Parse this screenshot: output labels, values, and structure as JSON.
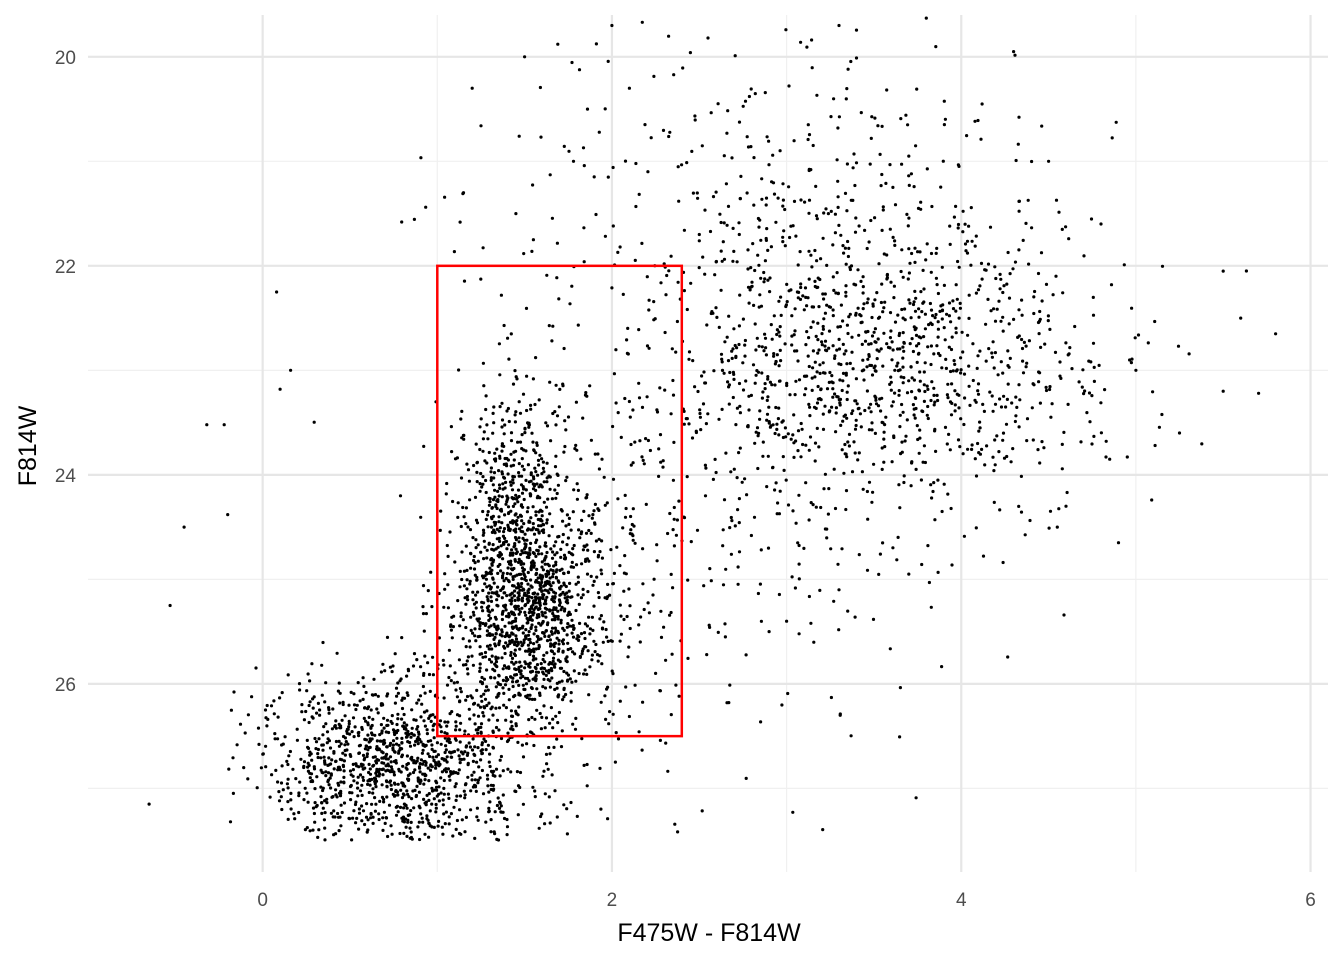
{
  "chart_data": {
    "type": "scatter",
    "title": "",
    "xlabel": "F475W - F814W",
    "ylabel": "F814W",
    "xlim": [
      -1.0,
      6.1
    ],
    "ylim": [
      19.6,
      27.8
    ],
    "y_reversed": true,
    "grid": true,
    "x_major_ticks": [
      0,
      2,
      4,
      6
    ],
    "x_tick_labels": [
      "0",
      "2",
      "4",
      "6"
    ],
    "x_minor_ticks": [
      1,
      3,
      5
    ],
    "y_major_ticks": [
      20,
      22,
      24,
      26
    ],
    "y_tick_labels": [
      "20",
      "22",
      "24",
      "26"
    ],
    "y_minor_ticks": [
      21,
      23,
      25,
      27
    ],
    "point_color": "#000000",
    "selection_box": {
      "x": [
        1.0,
        2.4
      ],
      "y": [
        22.0,
        26.5
      ],
      "color": "#ff0000"
    },
    "clusters": [
      {
        "cx": 0.75,
        "cy": 26.75,
        "sx": 0.38,
        "sy": 0.42,
        "n": 1150
      },
      {
        "cx": 1.5,
        "cy": 25.35,
        "sx": 0.22,
        "sy": 0.55,
        "n": 1100
      },
      {
        "cx": 1.42,
        "cy": 24.2,
        "sx": 0.14,
        "sy": 0.55,
        "n": 350
      },
      {
        "cx": 1.85,
        "cy": 24.5,
        "sx": 0.35,
        "sy": 1.1,
        "n": 250
      },
      {
        "cx": 3.4,
        "cy": 22.9,
        "sx": 0.55,
        "sy": 0.75,
        "n": 900
      },
      {
        "cx": 3.0,
        "cy": 21.1,
        "sx": 0.65,
        "sy": 0.75,
        "n": 220
      },
      {
        "cx": 4.2,
        "cy": 23.0,
        "sx": 0.5,
        "sy": 0.8,
        "n": 220
      },
      {
        "cx": 2.5,
        "cy": 23.2,
        "sx": 0.9,
        "sy": 2.0,
        "n": 220
      },
      {
        "cx": 2.8,
        "cy": 25.0,
        "sx": 0.6,
        "sy": 0.7,
        "n": 80
      }
    ],
    "points": [
      [
        -0.65,
        27.15
      ],
      [
        -0.53,
        25.25
      ],
      [
        -0.45,
        24.5
      ],
      [
        -0.32,
        23.52
      ],
      [
        -0.22,
        23.52
      ],
      [
        -0.2,
        24.38
      ],
      [
        0.08,
        22.25
      ],
      [
        0.1,
        23.18
      ],
      [
        0.16,
        23.0
      ],
      [
        1.15,
        21.3
      ],
      [
        1.2,
        20.3
      ],
      [
        1.45,
        21.5
      ],
      [
        1.5,
        20.0
      ],
      [
        1.55,
        21.75
      ],
      [
        1.78,
        21.0
      ],
      [
        2.0,
        19.7
      ],
      [
        1.86,
        20.5
      ],
      [
        2.1,
        20.3
      ],
      [
        2.5,
        21.7
      ],
      [
        2.55,
        19.82
      ],
      [
        3.3,
        19.7
      ],
      [
        3.8,
        19.63
      ],
      [
        3.7,
        20.95
      ],
      [
        4.3,
        19.95
      ],
      [
        4.5,
        21.0
      ],
      [
        4.8,
        21.6
      ],
      [
        5.0,
        23.0
      ],
      [
        5.25,
        23.6
      ],
      [
        5.5,
        22.05
      ],
      [
        5.5,
        23.2
      ],
      [
        5.6,
        22.5
      ],
      [
        5.8,
        22.65
      ],
      [
        4.6,
        24.3
      ],
      [
        4.85,
        23.85
      ],
      [
        4.55,
        24.5
      ],
      [
        3.3,
        25.1
      ],
      [
        3.0,
        25.4
      ],
      [
        3.7,
        24.95
      ],
      [
        2.9,
        25.5
      ],
      [
        2.25,
        25.9
      ]
    ]
  }
}
